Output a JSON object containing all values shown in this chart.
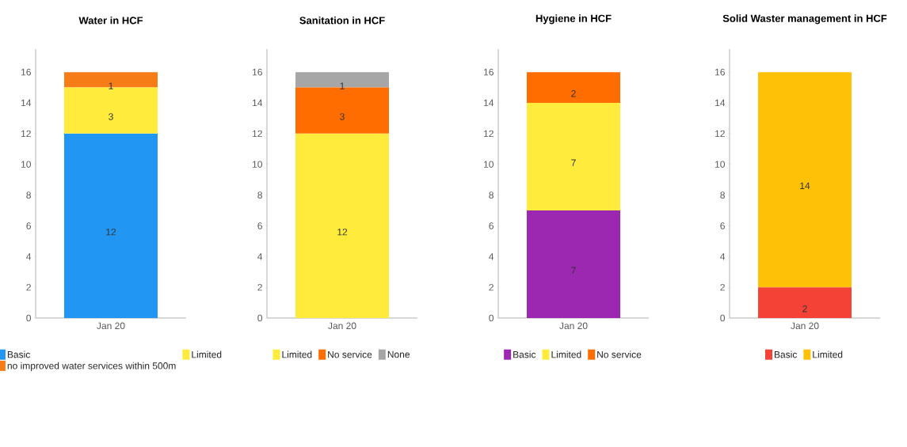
{
  "chart_data": [
    {
      "type": "bar",
      "title": "Water in HCF",
      "categories": [
        "Jan 20"
      ],
      "stacked": true,
      "data_labels": true,
      "legend": "bottom",
      "ylim": [
        0,
        17.5
      ],
      "yticks": [
        0,
        2,
        4,
        6,
        8,
        10,
        12,
        14,
        16
      ],
      "series": [
        {
          "name": "Basic",
          "color": "#2196f3",
          "values": [
            12
          ]
        },
        {
          "name": "Limited",
          "color": "#ffeb3b",
          "values": [
            3
          ]
        },
        {
          "name": "no improved water services within 500m",
          "color": "#f57c17",
          "values": [
            1
          ]
        }
      ]
    },
    {
      "type": "bar",
      "title": "Sanitation in HCF",
      "categories": [
        "Jan 20"
      ],
      "stacked": true,
      "data_labels": true,
      "legend": "bottom",
      "ylim": [
        0,
        17.5
      ],
      "yticks": [
        0,
        2,
        4,
        6,
        8,
        10,
        12,
        14,
        16
      ],
      "series": [
        {
          "name": "Limited",
          "color": "#ffeb3b",
          "values": [
            12
          ]
        },
        {
          "name": "No service",
          "color": "#ff6d00",
          "values": [
            3
          ]
        },
        {
          "name": "None",
          "color": "#a6a6a6",
          "values": [
            1
          ]
        }
      ]
    },
    {
      "type": "bar",
      "title": "Hygiene in HCF",
      "categories": [
        "Jan 20"
      ],
      "stacked": true,
      "data_labels": true,
      "legend": "bottom",
      "ylim": [
        0,
        17.5
      ],
      "yticks": [
        0,
        2,
        4,
        6,
        8,
        10,
        12,
        14,
        16
      ],
      "series": [
        {
          "name": "Basic",
          "color": "#9c27b0",
          "values": [
            7
          ]
        },
        {
          "name": "Limited",
          "color": "#ffeb3b",
          "values": [
            7
          ]
        },
        {
          "name": "No service",
          "color": "#ff6d00",
          "values": [
            2
          ]
        }
      ]
    },
    {
      "type": "bar",
      "title": "Solid Waster management in HCF",
      "categories": [
        "Jan 20"
      ],
      "stacked": true,
      "data_labels": true,
      "legend": "bottom",
      "ylim": [
        0,
        17.5
      ],
      "yticks": [
        0,
        2,
        4,
        6,
        8,
        10,
        12,
        14,
        16
      ],
      "series": [
        {
          "name": "Basic",
          "color": "#f44336",
          "values": [
            2
          ]
        },
        {
          "name": "Limited",
          "color": "#ffc107",
          "values": [
            14
          ]
        }
      ]
    }
  ]
}
